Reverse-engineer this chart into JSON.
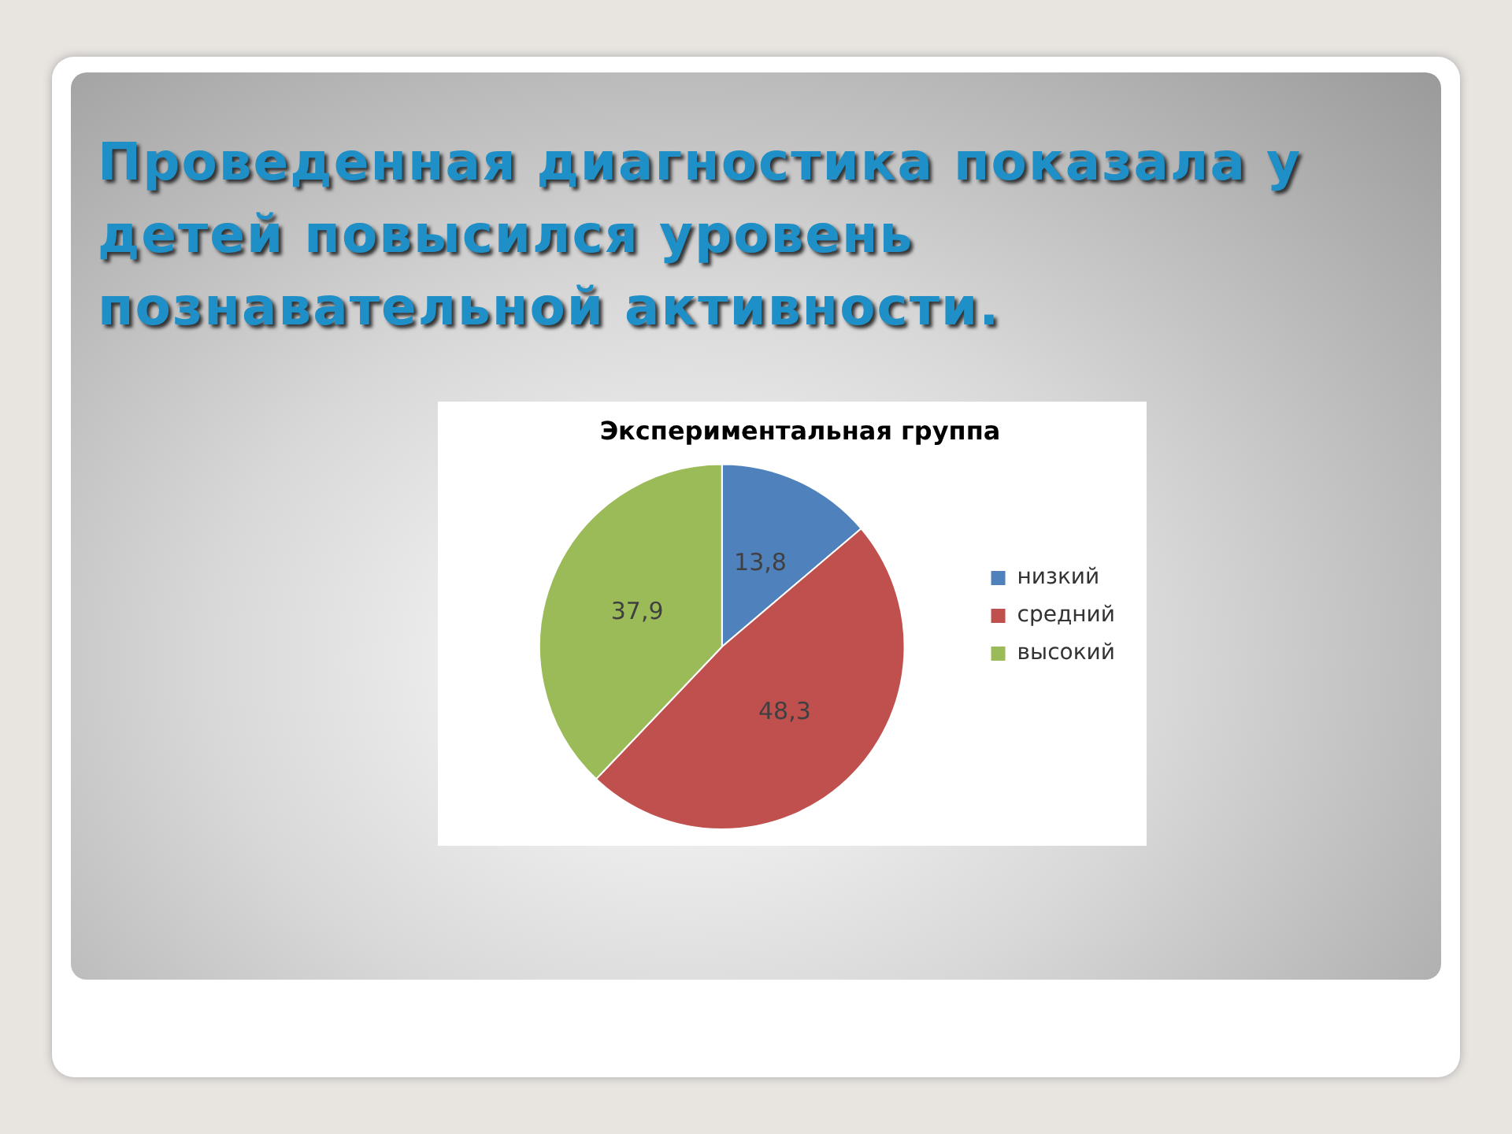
{
  "chart_data": {
    "type": "pie",
    "title": "Проведенная диагностика показала у детей повысился уровень познавательной активности.",
    "subtitle": "Экспериментальная группа",
    "categories": [
      "низкий",
      "средний",
      "высокий"
    ],
    "values": [
      13.8,
      48.3,
      37.9
    ],
    "value_labels": [
      "13,8",
      "48,3",
      "37,9"
    ],
    "colors": [
      "#4f81bd",
      "#c0504d",
      "#9bbb59"
    ],
    "legend": "right"
  }
}
